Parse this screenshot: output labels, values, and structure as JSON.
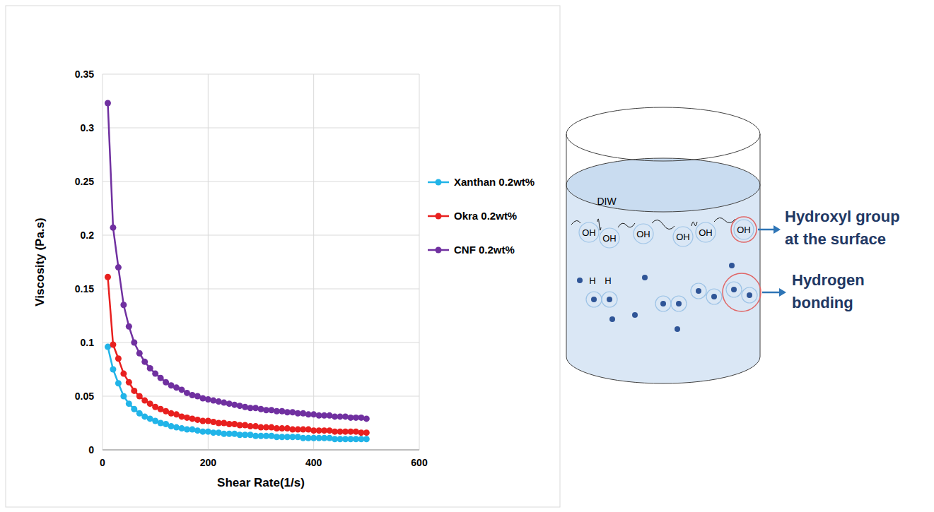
{
  "chart_data": {
    "type": "line",
    "x_label": "Shear Rate(1/s)",
    "y_label": "Viscosity (Pa.s)",
    "x": [
      10,
      20,
      30,
      40,
      50,
      60,
      70,
      80,
      90,
      100,
      110,
      120,
      130,
      140,
      150,
      160,
      170,
      180,
      190,
      200,
      210,
      220,
      230,
      240,
      250,
      260,
      270,
      280,
      290,
      300,
      310,
      320,
      330,
      340,
      350,
      360,
      370,
      380,
      390,
      400,
      410,
      420,
      430,
      440,
      450,
      460,
      470,
      480,
      490,
      500
    ],
    "series": [
      {
        "name": "Xanthan 0.2wt%",
        "color": "#21b4e8",
        "values": [
          0.096,
          0.075,
          0.062,
          0.05,
          0.043,
          0.038,
          0.034,
          0.031,
          0.029,
          0.027,
          0.025,
          0.024,
          0.022,
          0.021,
          0.02,
          0.019,
          0.019,
          0.018,
          0.017,
          0.017,
          0.016,
          0.016,
          0.015,
          0.015,
          0.015,
          0.014,
          0.014,
          0.014,
          0.013,
          0.013,
          0.013,
          0.013,
          0.012,
          0.012,
          0.012,
          0.012,
          0.012,
          0.011,
          0.011,
          0.011,
          0.011,
          0.011,
          0.011,
          0.01,
          0.01,
          0.01,
          0.01,
          0.01,
          0.01,
          0.01
        ]
      },
      {
        "name": "Okra 0.2wt%",
        "color": "#e8201f",
        "values": [
          0.161,
          0.098,
          0.085,
          0.071,
          0.063,
          0.055,
          0.05,
          0.046,
          0.043,
          0.04,
          0.038,
          0.036,
          0.034,
          0.033,
          0.031,
          0.03,
          0.029,
          0.028,
          0.027,
          0.027,
          0.026,
          0.025,
          0.025,
          0.024,
          0.024,
          0.023,
          0.023,
          0.022,
          0.022,
          0.021,
          0.021,
          0.021,
          0.02,
          0.02,
          0.02,
          0.019,
          0.019,
          0.019,
          0.019,
          0.018,
          0.018,
          0.018,
          0.018,
          0.017,
          0.017,
          0.017,
          0.017,
          0.017,
          0.016,
          0.016
        ]
      },
      {
        "name": "CNF 0.2wt%",
        "color": "#7030a0",
        "values": [
          0.323,
          0.207,
          0.17,
          0.135,
          0.115,
          0.1,
          0.09,
          0.082,
          0.076,
          0.071,
          0.067,
          0.063,
          0.06,
          0.058,
          0.056,
          0.053,
          0.051,
          0.05,
          0.048,
          0.047,
          0.046,
          0.045,
          0.044,
          0.043,
          0.042,
          0.041,
          0.04,
          0.039,
          0.039,
          0.038,
          0.037,
          0.037,
          0.036,
          0.036,
          0.035,
          0.035,
          0.034,
          0.034,
          0.033,
          0.033,
          0.032,
          0.032,
          0.032,
          0.031,
          0.031,
          0.031,
          0.03,
          0.03,
          0.03,
          0.029
        ]
      }
    ],
    "xlim": [
      0,
      600
    ],
    "ylim": [
      0,
      0.35
    ],
    "xticks": [
      0,
      200,
      400,
      600
    ],
    "yticks": [
      0,
      0.05,
      0.1,
      0.15,
      0.2,
      0.25,
      0.3,
      0.35
    ],
    "grid": true,
    "legend": "right",
    "marker": "circle"
  },
  "diagram": {
    "container_label": "DIW",
    "surface_groups": [
      "OH",
      "OH",
      "OH",
      "OH",
      "OH",
      "OH"
    ],
    "hydrogen_labels": [
      "H",
      "H"
    ],
    "callouts": [
      {
        "lines": [
          "Hydroxyl group",
          "at the surface"
        ]
      },
      {
        "lines": [
          "Hydrogen",
          "bonding"
        ]
      }
    ]
  }
}
